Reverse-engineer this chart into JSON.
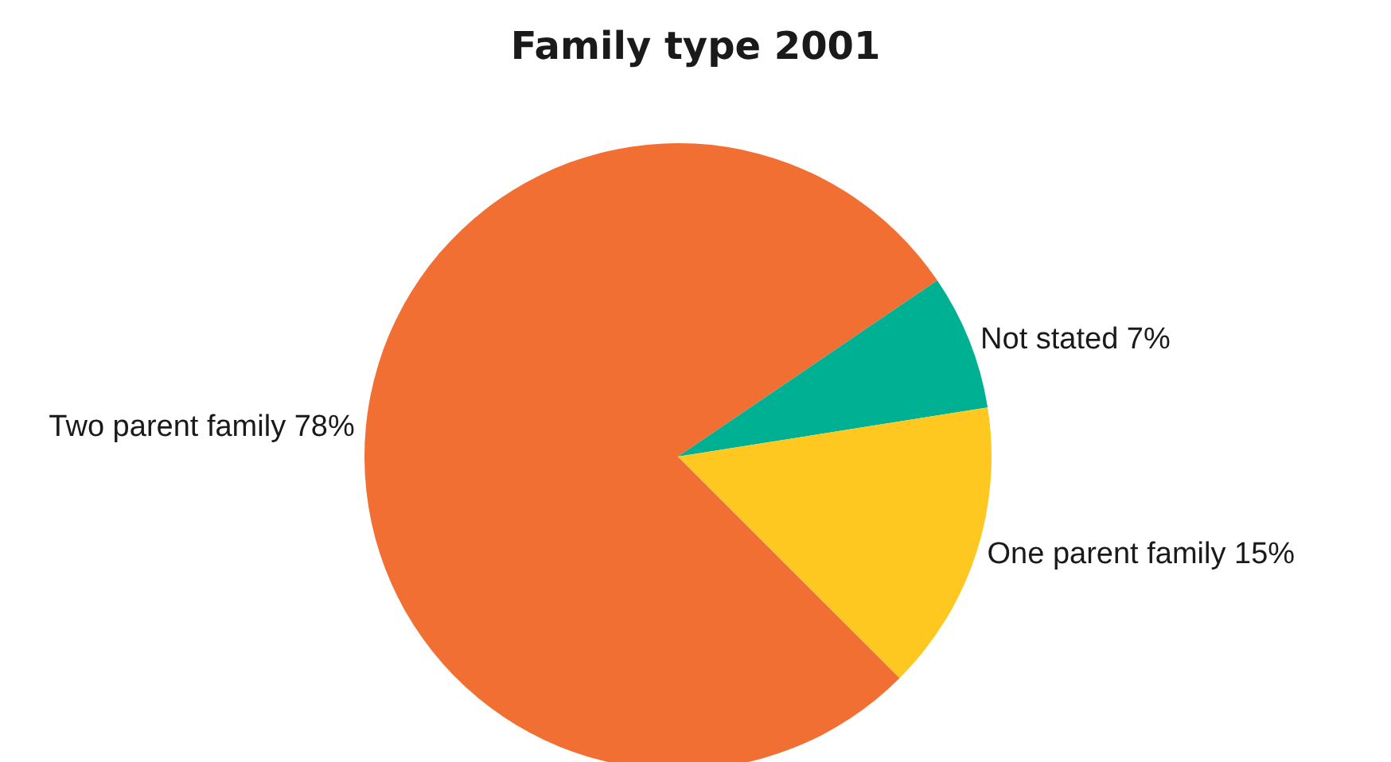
{
  "chart_data": {
    "type": "pie",
    "title": "Family type 2001",
    "categories": [
      "Two parent family",
      "Not stated",
      "One parent family"
    ],
    "values": [
      78,
      7,
      15
    ],
    "value_labels": [
      "78%",
      "7%",
      "15%"
    ],
    "colors": [
      "#f26f33",
      "#00b092",
      "#fec820"
    ],
    "legend": false
  }
}
